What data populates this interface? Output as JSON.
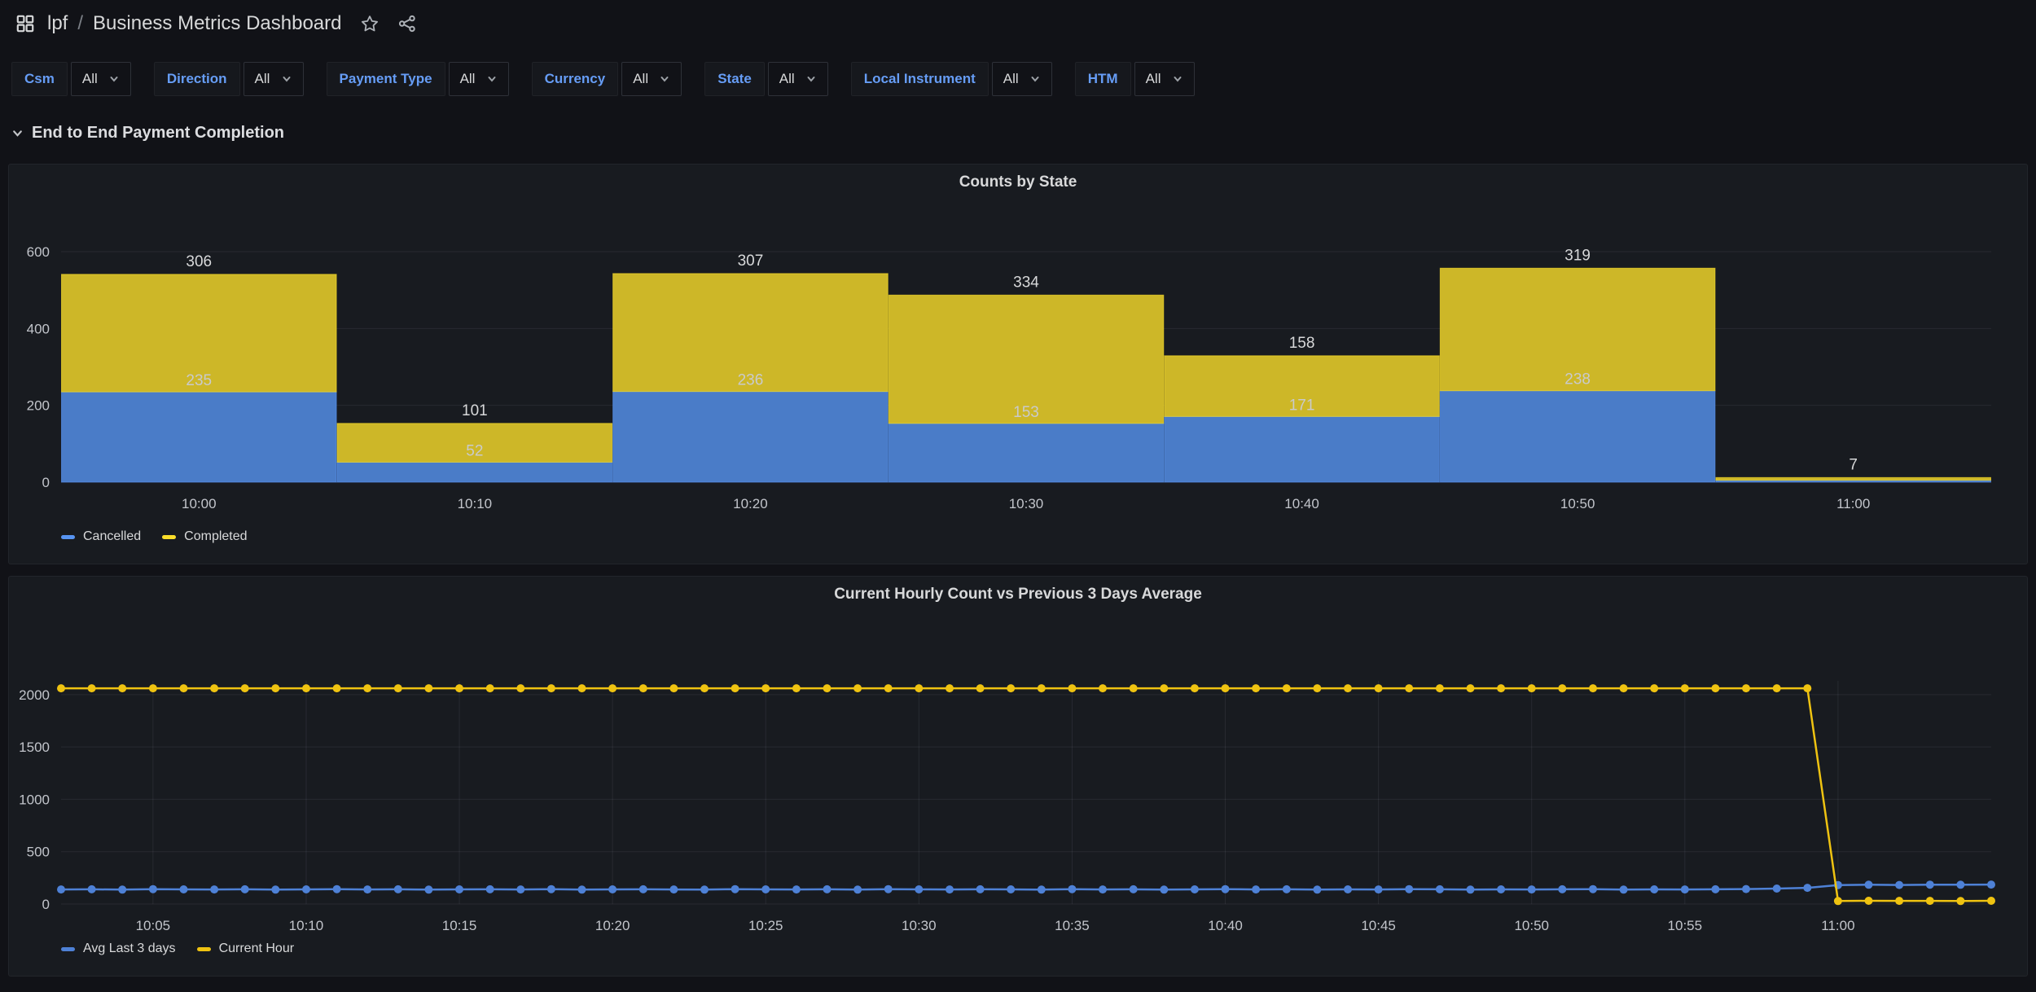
{
  "header": {
    "breadcrumb": [
      {
        "label": "lpf"
      },
      {
        "label": "Business Metrics Dashboard"
      }
    ],
    "separator": "/"
  },
  "filters": {
    "items": [
      {
        "label": "Csm",
        "value": "All"
      },
      {
        "label": "Direction",
        "value": "All"
      },
      {
        "label": "Payment Type",
        "value": "All"
      },
      {
        "label": "Currency",
        "value": "All"
      },
      {
        "label": "State",
        "value": "All"
      },
      {
        "label": "Local Instrument",
        "value": "All"
      },
      {
        "label": "HTM",
        "value": "All"
      }
    ]
  },
  "section": {
    "title": "End to End Payment Completion",
    "collapsed": false
  },
  "colors": {
    "page_background": "#111217",
    "panel_background": "#181b20",
    "grid_line": "rgba(204,204,220,0.09)",
    "axis_text": "#c2c5cb"
  },
  "chart_data": [
    {
      "type": "bar",
      "stacked": true,
      "title": "Counts by State",
      "categories": [
        "10:00",
        "10:10",
        "10:20",
        "10:30",
        "10:40",
        "10:50",
        "11:00"
      ],
      "series": [
        {
          "name": "Cancelled",
          "color": "#5794F2",
          "fill": "#4A7CC8",
          "values": [
            235,
            52,
            236,
            153,
            171,
            238,
            5
          ]
        },
        {
          "name": "Completed",
          "color": "#FADE2A",
          "fill": "#CDB728",
          "values": [
            306,
            101,
            307,
            334,
            158,
            319,
            7
          ]
        }
      ],
      "xlabel": "",
      "ylabel": "",
      "ylim": [
        0,
        600
      ],
      "yticks": [
        0,
        200,
        400,
        600
      ],
      "grid": "horizontal",
      "legend_position": "bottom-left"
    },
    {
      "type": "line",
      "title": "Current Hourly Count vs Previous 3 Days Average",
      "x_start": "10:02",
      "x_interval_minutes": 1,
      "xticks": {
        "labels": [
          "10:05",
          "10:10",
          "10:15",
          "10:20",
          "10:25",
          "10:30",
          "10:35",
          "10:40",
          "10:45",
          "10:50",
          "10:55",
          "11:00"
        ],
        "point_index": [
          3,
          8,
          13,
          18,
          23,
          28,
          33,
          38,
          43,
          48,
          53,
          58
        ]
      },
      "xlabel": "",
      "ylabel": "",
      "ylim": [
        0,
        2100
      ],
      "yticks": [
        0,
        500,
        1000,
        1500,
        2000
      ],
      "grid": "both",
      "points": true,
      "legend_position": "bottom-left",
      "series": [
        {
          "name": "Avg Last 3 days",
          "color": "#4E81D6",
          "values": [
            139,
            141,
            138,
            142,
            140,
            139,
            141,
            138,
            140,
            142,
            139,
            141,
            138,
            140,
            141,
            139,
            142,
            138,
            140,
            141,
            139,
            138,
            142,
            140,
            139,
            141,
            138,
            142,
            140,
            139,
            141,
            140,
            138,
            142,
            139,
            141,
            138,
            140,
            142,
            139,
            141,
            138,
            140,
            139,
            142,
            141,
            138,
            140,
            139,
            141,
            142,
            138,
            140,
            139,
            141,
            143,
            148,
            155,
            181,
            184,
            182,
            185,
            184,
            186
          ]
        },
        {
          "name": "Current Hour",
          "color": "#EFC311",
          "values": [
            2060,
            2060,
            2060,
            2060,
            2060,
            2060,
            2060,
            2060,
            2060,
            2060,
            2060,
            2060,
            2060,
            2060,
            2060,
            2060,
            2060,
            2060,
            2060,
            2060,
            2060,
            2060,
            2060,
            2060,
            2060,
            2060,
            2060,
            2060,
            2060,
            2060,
            2060,
            2060,
            2060,
            2060,
            2060,
            2060,
            2060,
            2060,
            2060,
            2060,
            2060,
            2060,
            2060,
            2060,
            2060,
            2060,
            2060,
            2060,
            2060,
            2060,
            2060,
            2060,
            2060,
            2060,
            2060,
            2060,
            2060,
            2060,
            29,
            31,
            30,
            30,
            29,
            31
          ]
        }
      ]
    }
  ]
}
